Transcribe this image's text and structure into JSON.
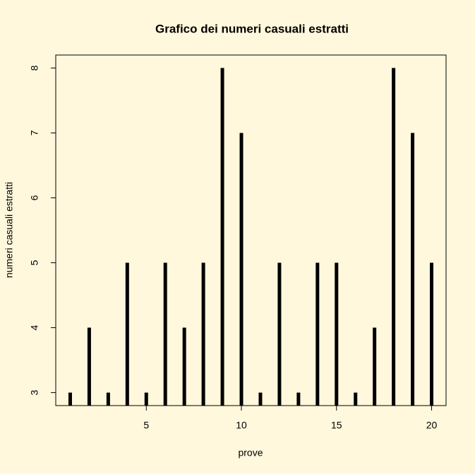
{
  "chart_data": {
    "type": "bar",
    "title": "Grafico dei numeri casuali estratti",
    "x_label": "prove",
    "y_label": "numeri casuali estratti",
    "x": [
      1,
      2,
      3,
      4,
      5,
      6,
      7,
      8,
      9,
      10,
      11,
      12,
      13,
      14,
      15,
      16,
      17,
      18,
      19,
      20
    ],
    "values": [
      3,
      4,
      3,
      5,
      3,
      5,
      4,
      5,
      8,
      7,
      3,
      5,
      3,
      5,
      5,
      3,
      4,
      8,
      7,
      5
    ],
    "color": "#000000",
    "xlim": [
      0.24,
      20.76
    ],
    "xticks": [
      5,
      10,
      15,
      20
    ],
    "ylim": [
      2.8,
      8.2
    ],
    "yticks": [
      3,
      4,
      5,
      6,
      7,
      8
    ]
  }
}
